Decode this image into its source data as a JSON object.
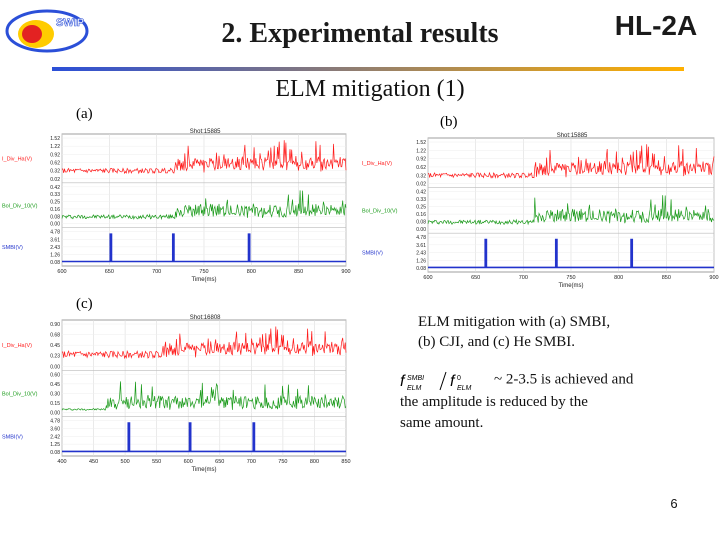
{
  "header": {
    "logo_text": "SWIP",
    "title": "2. Experimental results",
    "brand": "HL-2A",
    "subtitle": "ELM mitigation (1)"
  },
  "colors": {
    "accent_rule_start": "#2b4fd8",
    "accent_rule_end": "#ffb000",
    "series_red": "#ff1a1a",
    "series_green": "#1a9a1a",
    "series_blue": "#2233cc"
  },
  "note": {
    "line1": "ELM mitigation with (a) SMBI,",
    "line2": "(b)  CJI,  and (c) He SMBI.",
    "line3_suffix": "~ 2-3.5 is achieved and",
    "line4": "the amplitude is reduced by the",
    "line5": "same amount."
  },
  "page_number": "6",
  "chart_data": [
    {
      "id": "a",
      "type": "line",
      "panel_label": "(a)",
      "shot": "Shot:15885",
      "xlabel": "Time(ms)",
      "xlim": [
        600,
        900
      ],
      "x_ticks": [
        "600",
        "650",
        "700",
        "750",
        "800",
        "850",
        "900"
      ],
      "series": [
        {
          "name": "I_Div_Ha(V)",
          "color": "#ff1a1a",
          "ticks": [
            "1.52",
            "1.22",
            "0.92",
            "0.62",
            "0.32",
            "0.02"
          ],
          "baseline": 0.3,
          "burst_start": 720,
          "burst_amp": 1.1
        },
        {
          "name": "Bol_Div_10(V)",
          "color": "#1a9a1a",
          "ticks": [
            "0.42",
            "0.33",
            "0.25",
            "0.16",
            "0.08",
            "0.00"
          ],
          "baseline": 0.08,
          "burst_start": 720,
          "burst_amp": 0.3
        },
        {
          "name": "SMBI(V)",
          "color": "#2233cc",
          "ticks": [
            "4.78",
            "3.61",
            "2.43",
            "1.26",
            "0.08"
          ],
          "pulses": [
            651,
            717,
            797
          ],
          "pulse_height": 4.4
        }
      ]
    },
    {
      "id": "b",
      "type": "line",
      "panel_label": "(b)",
      "shot": "Shot:15885",
      "xlabel": "Time(ms)",
      "xlim": [
        600,
        900
      ],
      "x_ticks": [
        "600",
        "650",
        "700",
        "750",
        "800",
        "850",
        "900"
      ],
      "series": [
        {
          "name": "I_Div_Ha(V)",
          "color": "#ff1a1a",
          "ticks": [
            "1.52",
            "1.22",
            "0.92",
            "0.62",
            "0.32",
            "0.02"
          ],
          "baseline": 0.3,
          "burst_start": 712,
          "burst_amp": 1.1
        },
        {
          "name": "Bol_Div_10(V)",
          "color": "#1a9a1a",
          "ticks": [
            "0.42",
            "0.33",
            "0.25",
            "0.16",
            "0.08",
            "0.00"
          ],
          "baseline": 0.08,
          "burst_start": 712,
          "burst_amp": 0.3
        },
        {
          "name": "SMBI(V)",
          "color": "#2233cc",
          "ticks": [
            "4.78",
            "3.61",
            "2.43",
            "1.26",
            "0.08"
          ],
          "pulses": [
            660,
            734,
            813
          ],
          "pulse_height": 4.4
        }
      ]
    },
    {
      "id": "c",
      "type": "line",
      "panel_label": "(c)",
      "shot": "Shot:16808",
      "xlabel": "Time(ms)",
      "xlim": [
        400,
        850
      ],
      "x_ticks": [
        "400",
        "450",
        "500",
        "550",
        "600",
        "650",
        "700",
        "750",
        "800",
        "850"
      ],
      "series": [
        {
          "name": "I_Div_Ha(V)",
          "color": "#ff1a1a",
          "ticks": [
            "0.90",
            "0.68",
            "0.45",
            "0.23",
            "0.00"
          ],
          "baseline": 0.25,
          "burst_start": 560,
          "burst_amp": 0.55
        },
        {
          "name": "Bol_Div_10(V)",
          "color": "#1a9a1a",
          "ticks": [
            "0.60",
            "0.45",
            "0.30",
            "0.15",
            "0.00"
          ],
          "baseline": 0.05,
          "burst_start": 470,
          "burst_amp": 0.45
        },
        {
          "name": "SMBI(V)",
          "color": "#2233cc",
          "ticks": [
            "4.78",
            "3.60",
            "2.42",
            "1.25",
            "0.08"
          ],
          "pulses": [
            505,
            602,
            703
          ],
          "pulse_height": 4.4
        }
      ]
    }
  ]
}
